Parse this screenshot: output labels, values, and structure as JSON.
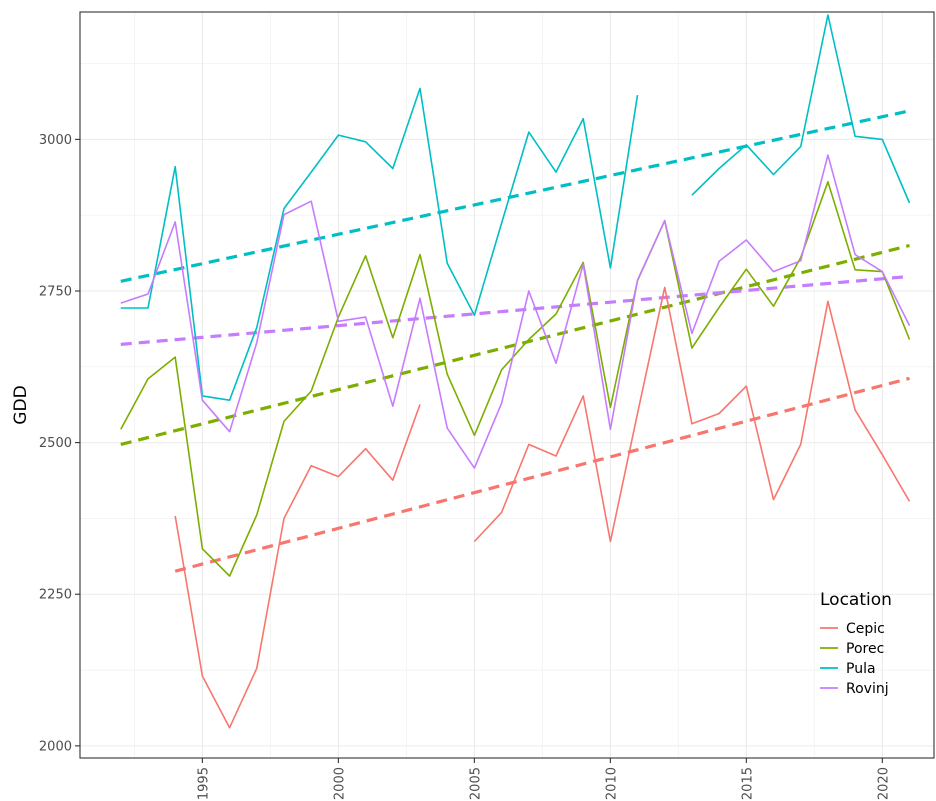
{
  "chart_data": {
    "type": "line",
    "title": "",
    "xlabel": "",
    "ylabel": "GDD",
    "xlim": [
      1990.5,
      2021.9
    ],
    "ylim": [
      1980,
      3210
    ],
    "x_ticks": [
      1995,
      2000,
      2005,
      2010,
      2015,
      2020
    ],
    "y_ticks": [
      2000,
      2250,
      2500,
      2750,
      3000
    ],
    "grid": true,
    "legend": {
      "title": "Location",
      "position": "bottom-right"
    },
    "series": [
      {
        "name": "Cepic",
        "color": "#F8766D",
        "points": [
          [
            1994,
            2379
          ],
          [
            1995,
            2115
          ],
          [
            1996,
            2030
          ],
          [
            1997,
            2128
          ],
          [
            1998,
            2375
          ],
          [
            1999,
            2462
          ],
          [
            2000,
            2444
          ],
          [
            2001,
            2490
          ],
          [
            2002,
            2438
          ],
          [
            2003,
            2563
          ],
          [
            2004,
            null
          ],
          [
            2005,
            2337
          ],
          [
            2006,
            2385
          ],
          [
            2007,
            2497
          ],
          [
            2008,
            2478
          ],
          [
            2009,
            2577
          ],
          [
            2010,
            2337
          ],
          [
            2011,
            2548
          ],
          [
            2012,
            2756
          ],
          [
            2013,
            2531
          ],
          [
            2014,
            2548
          ],
          [
            2015,
            2593
          ],
          [
            2016,
            2406
          ],
          [
            2017,
            2497
          ],
          [
            2018,
            2733
          ],
          [
            2019,
            2554
          ],
          [
            2020,
            2480
          ],
          [
            2021,
            2403
          ]
        ],
        "trend": [
          [
            1994,
            2288
          ],
          [
            2021,
            2606
          ]
        ]
      },
      {
        "name": "Porec",
        "color": "#7CAE00",
        "points": [
          [
            1992,
            2522
          ],
          [
            1993,
            2605
          ],
          [
            1994,
            2641
          ],
          [
            1995,
            2325
          ],
          [
            1996,
            2280
          ],
          [
            1997,
            2381
          ],
          [
            1998,
            2535
          ],
          [
            1999,
            2585
          ],
          [
            2000,
            2707
          ],
          [
            2001,
            2808
          ],
          [
            2002,
            2673
          ],
          [
            2003,
            2810
          ],
          [
            2004,
            2613
          ],
          [
            2005,
            2512
          ],
          [
            2006,
            2620
          ],
          [
            2007,
            2670
          ],
          [
            2008,
            2712
          ],
          [
            2009,
            2797
          ],
          [
            2010,
            2558
          ],
          [
            2011,
            2767
          ],
          [
            2012,
            2866
          ],
          [
            2013,
            2656
          ],
          [
            2014,
            2723
          ],
          [
            2015,
            2786
          ],
          [
            2016,
            2725
          ],
          [
            2017,
            2805
          ],
          [
            2018,
            2930
          ],
          [
            2019,
            2785
          ],
          [
            2020,
            2782
          ],
          [
            2021,
            2670
          ]
        ],
        "trend": [
          [
            1992,
            2497
          ],
          [
            2021,
            2825
          ]
        ]
      },
      {
        "name": "Pula",
        "color": "#00BFC4",
        "points": [
          [
            1992,
            2722
          ],
          [
            1993,
            2722
          ],
          [
            1994,
            2955
          ],
          [
            1995,
            2577
          ],
          [
            1996,
            2570
          ],
          [
            1997,
            2690
          ],
          [
            1998,
            2886
          ],
          [
            1999,
            2946
          ],
          [
            2000,
            3007
          ],
          [
            2001,
            2996
          ],
          [
            2002,
            2952
          ],
          [
            2003,
            3084
          ],
          [
            2004,
            2796
          ],
          [
            2005,
            2710
          ],
          [
            2006,
            2862
          ],
          [
            2007,
            3012
          ],
          [
            2008,
            2946
          ],
          [
            2009,
            3034
          ],
          [
            2010,
            2788
          ],
          [
            2011,
            3073
          ],
          [
            2012,
            null
          ],
          [
            2013,
            2908
          ],
          [
            2014,
            2952
          ],
          [
            2015,
            2991
          ],
          [
            2016,
            2942
          ],
          [
            2017,
            2988
          ],
          [
            2018,
            3205
          ],
          [
            2019,
            3005
          ],
          [
            2020,
            3000
          ],
          [
            2021,
            2895
          ]
        ],
        "trend": [
          [
            1992,
            2766
          ],
          [
            2021,
            3047
          ]
        ]
      },
      {
        "name": "Rovinj",
        "color": "#C77CFF",
        "points": [
          [
            1992,
            2730
          ],
          [
            1993,
            2745
          ],
          [
            1994,
            2864
          ],
          [
            1995,
            2570
          ],
          [
            1996,
            2518
          ],
          [
            1997,
            2665
          ],
          [
            1998,
            2876
          ],
          [
            1999,
            2898
          ],
          [
            2000,
            2700
          ],
          [
            2001,
            2707
          ],
          [
            2002,
            2560
          ],
          [
            2003,
            2738
          ],
          [
            2004,
            2524
          ],
          [
            2005,
            2458
          ],
          [
            2006,
            2565
          ],
          [
            2007,
            2750
          ],
          [
            2008,
            2631
          ],
          [
            2009,
            2794
          ],
          [
            2010,
            2522
          ],
          [
            2011,
            2768
          ],
          [
            2012,
            2866
          ],
          [
            2013,
            2680
          ],
          [
            2014,
            2799
          ],
          [
            2015,
            2834
          ],
          [
            2016,
            2782
          ],
          [
            2017,
            2800
          ],
          [
            2018,
            2974
          ],
          [
            2019,
            2810
          ],
          [
            2020,
            2782
          ],
          [
            2021,
            2693
          ]
        ],
        "trend": [
          [
            1992,
            2662
          ],
          [
            2021,
            2774
          ]
        ]
      }
    ]
  }
}
